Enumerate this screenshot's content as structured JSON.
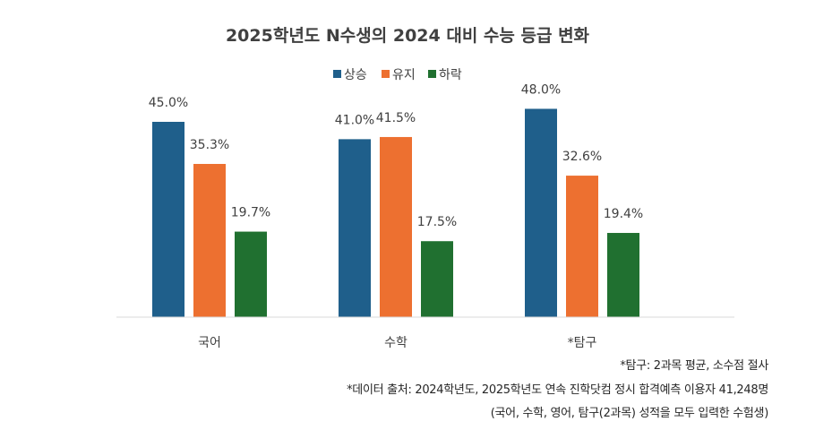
{
  "chart_data": {
    "type": "bar",
    "title": "2025학년도 N수생의 2024 대비 수능 등급 변화",
    "categories": [
      "국어",
      "수학",
      "*탐구"
    ],
    "series": [
      {
        "name": "상승",
        "values": [
          45.0,
          41.0,
          48.0
        ],
        "color": "#1f5f8b"
      },
      {
        "name": "유지",
        "values": [
          35.3,
          41.5,
          32.6
        ],
        "color": "#ed7030"
      },
      {
        "name": "하락",
        "values": [
          19.7,
          17.5,
          19.4
        ],
        "color": "#207030"
      }
    ],
    "value_format": "percent_1dp",
    "ylim": [
      0,
      50
    ],
    "grid": false,
    "legend": "top-center"
  },
  "footnotes": [
    "*탐구: 2과목 평균, 소수점 절사",
    "*데이터 출처: 2024학년도, 2025학년도 연속 진학닷컴 정시 합격예측 이용자 41,248명",
    "(국어, 수학, 영어, 탐구(2과목) 성적을 모두 입력한 수험생)"
  ]
}
